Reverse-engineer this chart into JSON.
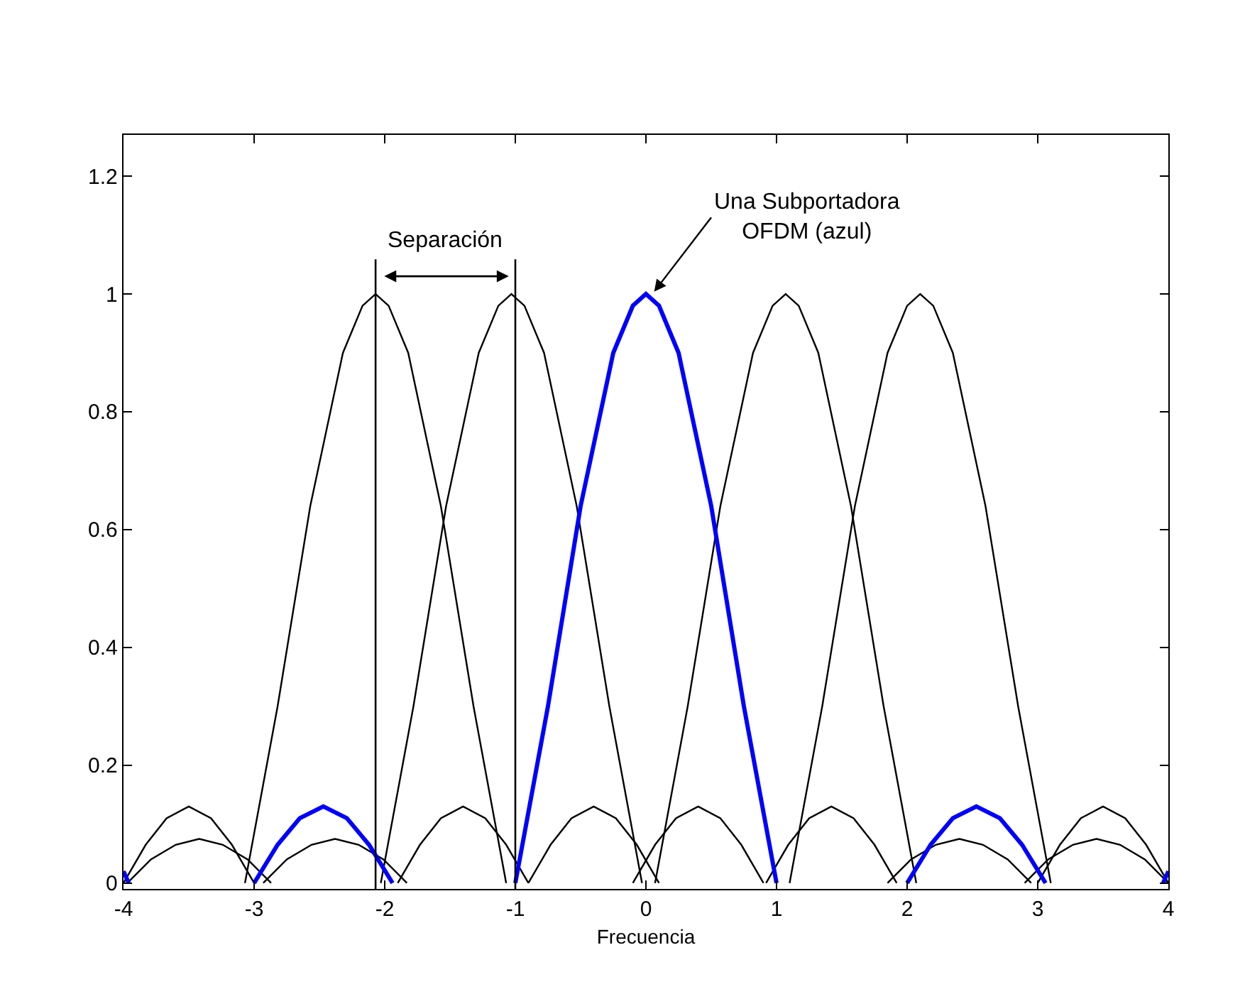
{
  "chart_data": {
    "type": "line",
    "xlabel": "Frecuencia",
    "xlim": [
      -4,
      4
    ],
    "xticks": [
      -4,
      -3,
      -2,
      -1,
      0,
      1,
      2,
      3,
      4
    ],
    "ylim": [
      -0.01,
      1.27
    ],
    "yticks": [
      0,
      0.2,
      0.4,
      0.6,
      0.8,
      1,
      1.2
    ],
    "marker": "none",
    "line_style": "solid",
    "series": [
      {
        "color": "#000000",
        "x": [
          -3.07,
          -2.82,
          -2.57,
          -2.32,
          -2.17,
          -2.07,
          -1.97,
          -1.82,
          -1.57,
          -1.32,
          -1.07,
          null,
          -2.03,
          -1.78,
          -1.53,
          -1.28,
          -1.13,
          -1.03,
          -0.93,
          -0.78,
          -0.53,
          -0.28,
          -0.03,
          null,
          0.07,
          0.32,
          0.57,
          0.82,
          0.97,
          1.07,
          1.17,
          1.32,
          1.57,
          1.82,
          2.07,
          null,
          1.1,
          1.35,
          1.6,
          1.85,
          2.0,
          2.1,
          2.2,
          2.35,
          2.6,
          2.85,
          3.1,
          null,
          -4.0,
          -3.83,
          -3.67,
          -3.5,
          -3.33,
          -3.17,
          -3.0,
          null,
          -1.9,
          -1.73,
          -1.57,
          -1.4,
          -1.23,
          -1.07,
          -0.9,
          null,
          -0.9,
          -0.73,
          -0.57,
          -0.4,
          -0.23,
          -0.07,
          0.1,
          null,
          -0.1,
          0.07,
          0.23,
          0.4,
          0.57,
          0.73,
          0.9,
          null,
          0.92,
          1.09,
          1.25,
          1.42,
          1.59,
          1.75,
          1.92,
          null,
          3.0,
          3.17,
          3.33,
          3.5,
          3.67,
          3.83,
          4.0,
          null,
          -3.97,
          -3.79,
          -3.6,
          -3.42,
          -3.24,
          -3.05,
          -2.87,
          null,
          -2.93,
          -2.75,
          -2.56,
          -2.38,
          -2.2,
          -2.01,
          -1.83,
          null,
          1.85,
          2.03,
          2.22,
          2.4,
          2.58,
          2.77,
          2.95,
          null,
          2.9,
          3.08,
          3.27,
          3.45,
          3.63,
          3.82,
          4.0
        ],
        "values": [
          0,
          0.3,
          0.64,
          0.9,
          0.98,
          1,
          0.98,
          0.9,
          0.64,
          0.3,
          0,
          null,
          0,
          0.3,
          0.64,
          0.9,
          0.98,
          1,
          0.98,
          0.9,
          0.64,
          0.3,
          0,
          null,
          0,
          0.3,
          0.64,
          0.9,
          0.98,
          1,
          0.98,
          0.9,
          0.64,
          0.3,
          0,
          null,
          0,
          0.3,
          0.64,
          0.9,
          0.98,
          1,
          0.98,
          0.9,
          0.64,
          0.3,
          0,
          null,
          0,
          0.065,
          0.11,
          0.13,
          0.11,
          0.065,
          0,
          null,
          0,
          0.065,
          0.11,
          0.13,
          0.11,
          0.065,
          0,
          null,
          0,
          0.065,
          0.11,
          0.13,
          0.11,
          0.065,
          0,
          null,
          0,
          0.065,
          0.11,
          0.13,
          0.11,
          0.065,
          0,
          null,
          0,
          0.065,
          0.11,
          0.13,
          0.11,
          0.065,
          0,
          null,
          0,
          0.065,
          0.11,
          0.13,
          0.11,
          0.065,
          0,
          null,
          0,
          0.04,
          0.065,
          0.075,
          0.065,
          0.04,
          0,
          null,
          0,
          0.04,
          0.065,
          0.075,
          0.065,
          0.04,
          0,
          null,
          0,
          0.04,
          0.065,
          0.075,
          0.065,
          0.04,
          0,
          null,
          0,
          0.04,
          0.065,
          0.075,
          0.065,
          0.04,
          0
        ]
      },
      {
        "color": "#0000ff",
        "x": [
          -4.0,
          -3.96,
          null,
          -3.0,
          -2.82,
          -2.65,
          -2.47,
          -2.29,
          -2.12,
          -1.94,
          null,
          -1,
          -0.75,
          -0.5,
          -0.25,
          -0.1,
          0,
          0.1,
          0.25,
          0.5,
          0.75,
          1,
          null,
          2.0,
          2.18,
          2.35,
          2.53,
          2.71,
          2.88,
          3.06,
          null,
          3.96,
          4.0
        ],
        "values": [
          0.02,
          0,
          null,
          0,
          0.065,
          0.11,
          0.13,
          0.11,
          0.065,
          0,
          null,
          0,
          0.3,
          0.64,
          0.9,
          0.98,
          1,
          0.98,
          0.9,
          0.64,
          0.3,
          0,
          null,
          0,
          0.065,
          0.11,
          0.13,
          0.11,
          0.065,
          0,
          null,
          0,
          0.02
        ]
      }
    ],
    "ref_lines": [
      {
        "axis": "x",
        "value": -2.07,
        "label": null
      },
      {
        "axis": "x",
        "value": -1.0,
        "label": null
      }
    ],
    "annotations": [
      "Separación",
      {
        "text": "Una Subportadora\nOFDM (azul)",
        "x": 0.05,
        "y": 1.0
      }
    ]
  }
}
